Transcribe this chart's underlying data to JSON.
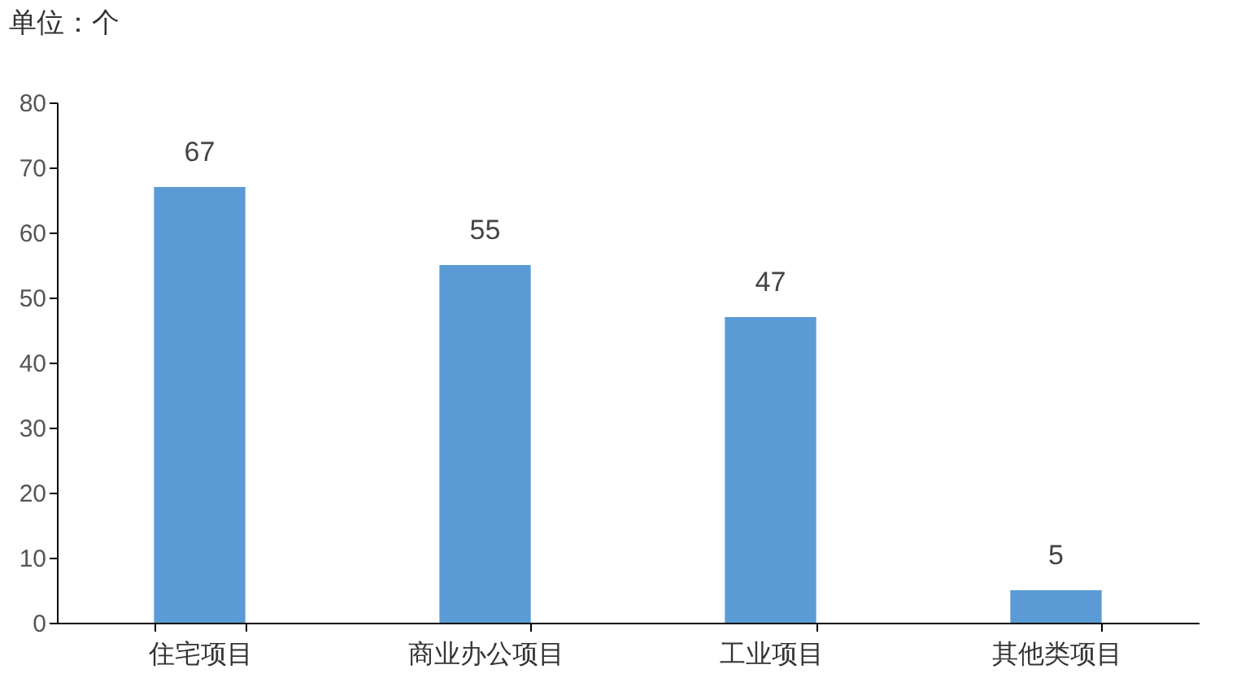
{
  "chart_data": {
    "type": "bar",
    "ylabel": "单位：个",
    "categories": [
      "住宅项目",
      "商业办公项目",
      "工业项目",
      "其他类项目"
    ],
    "values": [
      67,
      55,
      47,
      5
    ],
    "color": "#5b9bd5",
    "ylim": [
      0,
      80
    ],
    "yticks": [
      0,
      10,
      20,
      30,
      40,
      50,
      60,
      70,
      80
    ],
    "grid": false,
    "data_labels": true
  }
}
